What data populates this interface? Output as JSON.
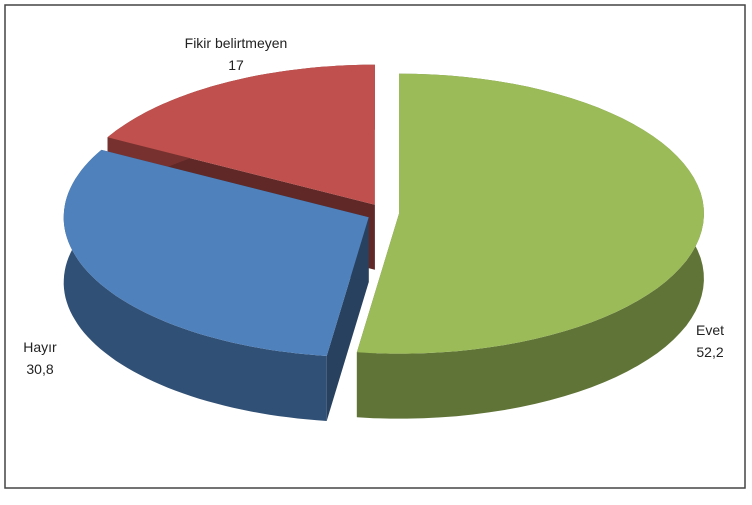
{
  "chart_data": {
    "type": "pie",
    "categories": [
      "Evet",
      "Hayır",
      "Fikir belirtmeyen"
    ],
    "values": [
      52.2,
      30.8,
      17
    ],
    "value_labels": [
      "52,2",
      "30,8",
      "17"
    ],
    "colors": [
      "#9bbb59",
      "#4f81bd",
      "#c0504d"
    ]
  }
}
